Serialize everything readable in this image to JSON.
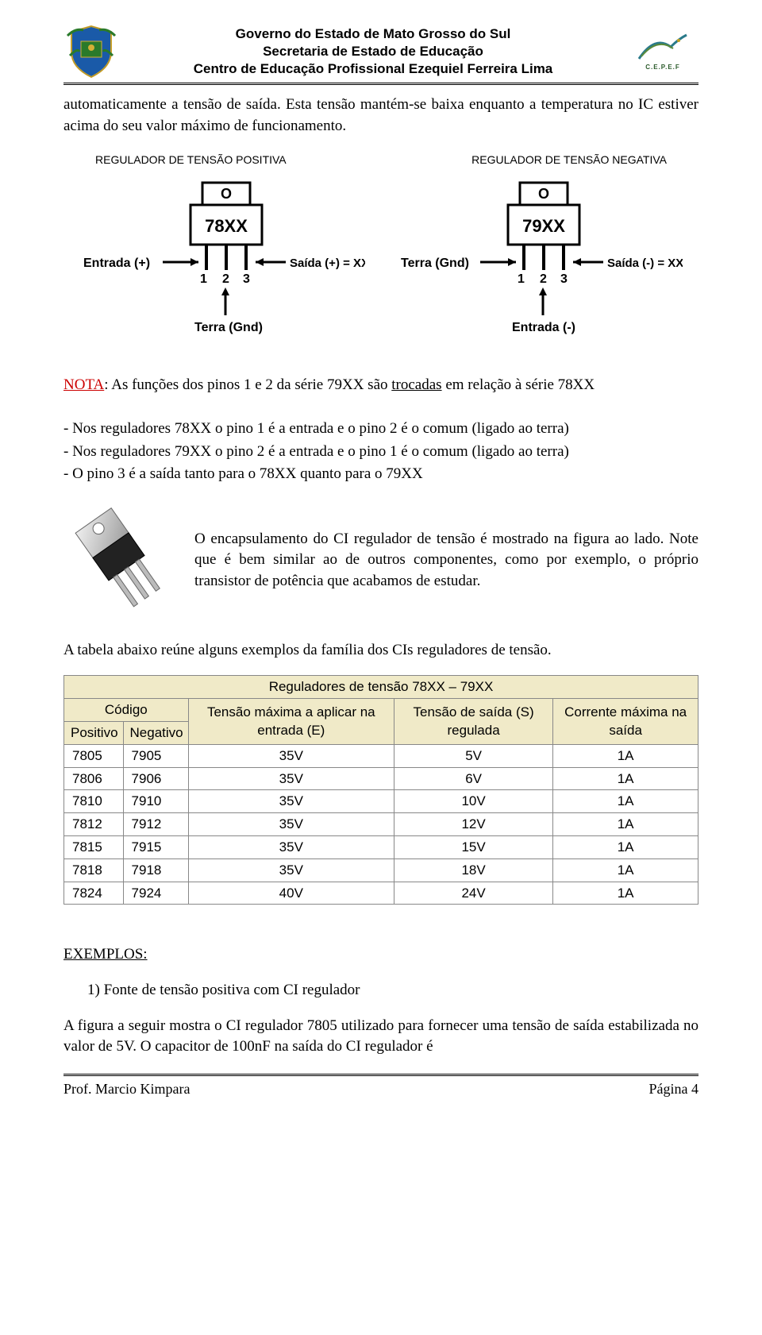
{
  "header": {
    "line1": "Governo do Estado de Mato Grosso do Sul",
    "line2": "Secretaria de Estado de Educação",
    "line3": "Centro de Educação Profissional Ezequiel Ferreira Lima",
    "right_label": "C.E.P.E.F"
  },
  "intro_paragraph": "automaticamente a tensão de saída. Esta tensão mantém-se baixa enquanto a temperatura no IC estiver acima do seu valor máximo de funcionamento.",
  "reg_labels": {
    "positive": "REGULADOR DE TENSÃO POSITIVA",
    "negative": "REGULADOR DE TENSÃO NEGATIVA"
  },
  "diagrams": {
    "left": {
      "chip_label": "78XX",
      "pin_labels": [
        "1",
        "2",
        "3"
      ],
      "left_arrow": "Entrada (+)",
      "right_arrow": "Saída (+) = XX",
      "bottom_arrow": "Terra (Gnd)",
      "hole": "O"
    },
    "right": {
      "chip_label": "79XX",
      "pin_labels": [
        "1",
        "2",
        "3"
      ],
      "left_arrow": "Terra (Gnd)",
      "right_arrow": "Saída (-) = XX",
      "bottom_arrow": "Entrada (-)",
      "hole": "O"
    }
  },
  "nota": {
    "label": "NOTA",
    "text_pre": ": As funções dos pinos 1 e 2 da série 79XX são ",
    "underlined": "trocadas",
    "text_post": " em relação à série 78XX",
    "bullets": [
      "- Nos reguladores 78XX o pino 1 é a entrada e o pino 2 é o comum (ligado ao terra)",
      "- Nos reguladores 79XX o pino 2 é a entrada e o pino 1 é o comum (ligado ao terra)",
      "- O pino 3 é a saída tanto para o 78XX quanto para o 79XX"
    ]
  },
  "chip_paragraph": "O encapsulamento do CI regulador de tensão é mostrado na figura ao lado. Note que é bem similar ao de outros componentes, como por exemplo, o próprio transistor de potência que acabamos de estudar.",
  "table_intro": "A tabela abaixo reúne alguns exemplos da família dos CIs reguladores de tensão.",
  "table": {
    "title": "Reguladores de tensão 78XX – 79XX",
    "header_bg": "#f0eac8",
    "border_color": "#888888",
    "columns": {
      "codigo": "Código",
      "positivo": "Positivo",
      "negativo": "Negativo",
      "vin": "Tensão máxima a aplicar na entrada (E)",
      "vout": "Tensão de saída (S) regulada",
      "iout": "Corrente máxima na saída"
    },
    "rows": [
      {
        "pos": "7805",
        "neg": "7905",
        "vin": "35V",
        "vout": "5V",
        "iout": "1A"
      },
      {
        "pos": "7806",
        "neg": "7906",
        "vin": "35V",
        "vout": "6V",
        "iout": "1A"
      },
      {
        "pos": "7810",
        "neg": "7910",
        "vin": "35V",
        "vout": "10V",
        "iout": "1A"
      },
      {
        "pos": "7812",
        "neg": "7912",
        "vin": "35V",
        "vout": "12V",
        "iout": "1A"
      },
      {
        "pos": "7815",
        "neg": "7915",
        "vin": "35V",
        "vout": "15V",
        "iout": "1A"
      },
      {
        "pos": "7818",
        "neg": "7918",
        "vin": "35V",
        "vout": "18V",
        "iout": "1A"
      },
      {
        "pos": "7824",
        "neg": "7924",
        "vin": "40V",
        "vout": "24V",
        "iout": "1A"
      }
    ]
  },
  "exemplos": {
    "title": "EXEMPLOS:",
    "item1": "1)  Fonte de tensão positiva com CI regulador",
    "closing": "A figura a seguir mostra o CI regulador 7805 utilizado para fornecer uma tensão de saída estabilizada no valor de 5V. O capacitor de 100nF na saída do CI regulador é"
  },
  "footer": {
    "left": "Prof. Marcio Kimpara",
    "right": "Página 4"
  }
}
